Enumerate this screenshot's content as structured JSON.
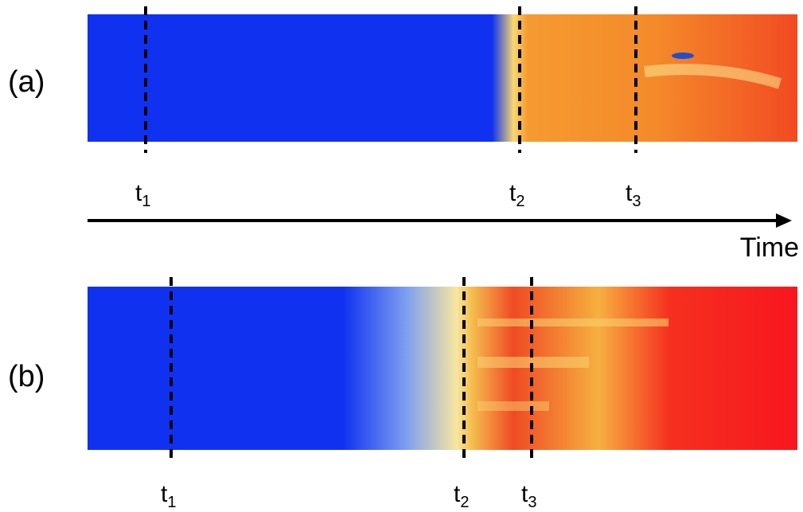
{
  "panels": [
    {
      "label": "(a)",
      "markers": [
        {
          "symbol": "t",
          "sub": "1"
        },
        {
          "symbol": "t",
          "sub": "2"
        },
        {
          "symbol": "t",
          "sub": "3"
        }
      ]
    },
    {
      "label": "(b)",
      "markers": [
        {
          "symbol": "t",
          "sub": "1"
        },
        {
          "symbol": "t",
          "sub": "2"
        },
        {
          "symbol": "t",
          "sub": "3"
        }
      ]
    }
  ],
  "time_axis": {
    "label": "Time"
  }
}
